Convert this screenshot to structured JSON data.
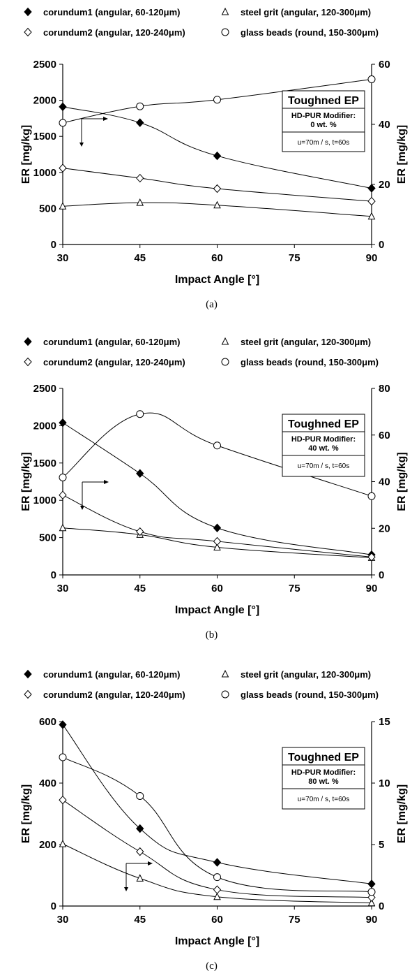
{
  "chart_data": [
    {
      "type": "line",
      "caption": "(a)",
      "xlabel": "Impact Angle [°]",
      "ylabel": "ER [mg/kg]",
      "y2label": "ER [mg/kg]",
      "x_ticks": [
        30,
        45,
        60,
        75,
        90
      ],
      "xlim": [
        30,
        90
      ],
      "ylim": [
        0,
        2500
      ],
      "y_ticks": [
        0,
        500,
        1000,
        1500,
        2000,
        2500
      ],
      "y2lim": [
        0,
        60
      ],
      "y2_ticks": [
        0,
        20,
        40,
        60
      ],
      "legend": [
        {
          "label": "corundum1 (angular, 60-120μm)",
          "marker": "diamond-filled"
        },
        {
          "label": "steel grit (angular, 120-300μm)",
          "marker": "triangle-open"
        },
        {
          "label": "corundum2 (angular, 120-240μm)",
          "marker": "diamond-open"
        },
        {
          "label": "glass beads (round, 150-300μm)",
          "marker": "circle-open"
        }
      ],
      "annotation": {
        "title": "Toughned EP",
        "line1": "HD-PUR Modifier:",
        "line2": "0 wt. %",
        "line3": "u=70m / s, t=60s"
      },
      "series": [
        {
          "name": "corundum1 (angular, 60-120μm)",
          "marker": "diamond-filled",
          "axis": "left",
          "x": [
            30,
            45,
            60,
            90
          ],
          "values": [
            1910,
            1690,
            1230,
            780
          ]
        },
        {
          "name": "steel grit (angular, 120-300μm)",
          "marker": "triangle-open",
          "axis": "left",
          "x": [
            30,
            45,
            60,
            90
          ],
          "values": [
            530,
            580,
            545,
            390
          ]
        },
        {
          "name": "corundum2 (angular, 120-240μm)",
          "marker": "diamond-open",
          "axis": "left",
          "x": [
            30,
            45,
            60,
            90
          ],
          "values": [
            1060,
            920,
            775,
            600
          ]
        },
        {
          "name": "glass beads (round, 150-300μm)",
          "marker": "circle-open",
          "axis": "right",
          "x": [
            30,
            45,
            60,
            90
          ],
          "values": [
            40.5,
            46,
            48.2,
            55
          ]
        }
      ]
    },
    {
      "type": "line",
      "caption": "(b)",
      "xlabel": "Impact Angle [°]",
      "ylabel": "ER [mg/kg]",
      "y2label": "ER [mg/kg]",
      "x_ticks": [
        30,
        45,
        60,
        75,
        90
      ],
      "xlim": [
        30,
        90
      ],
      "ylim": [
        0,
        2500
      ],
      "y_ticks": [
        0,
        500,
        1000,
        1500,
        2000,
        2500
      ],
      "y2lim": [
        0,
        80
      ],
      "y2_ticks": [
        0,
        20,
        40,
        60,
        80
      ],
      "legend": [
        {
          "label": "corundum1 (angular, 60-120μm)",
          "marker": "diamond-filled"
        },
        {
          "label": "steel grit (angular, 120-300μm)",
          "marker": "triangle-open"
        },
        {
          "label": "corundum2 (angular, 120-240μm)",
          "marker": "diamond-open"
        },
        {
          "label": "glass beads (round, 150-300μm)",
          "marker": "circle-open"
        }
      ],
      "annotation": {
        "title": "Toughned EP",
        "line1": "HD-PUR Modifier:",
        "line2": "40 wt. %",
        "line3": "u=70m / s, t=60s"
      },
      "series": [
        {
          "name": "corundum1 (angular, 60-120μm)",
          "marker": "diamond-filled",
          "axis": "left",
          "x": [
            30,
            45,
            60,
            90
          ],
          "values": [
            2040,
            1360,
            630,
            270
          ]
        },
        {
          "name": "steel grit (angular, 120-300μm)",
          "marker": "triangle-open",
          "axis": "left",
          "x": [
            30,
            45,
            60,
            90
          ],
          "values": [
            630,
            540,
            370,
            230
          ]
        },
        {
          "name": "corundum2 (angular, 120-240μm)",
          "marker": "diamond-open",
          "axis": "left",
          "x": [
            30,
            45,
            60,
            90
          ],
          "values": [
            1070,
            580,
            450,
            240
          ]
        },
        {
          "name": "glass beads (round, 150-300μm)",
          "marker": "circle-open",
          "axis": "right",
          "x": [
            30,
            45,
            60,
            90
          ],
          "values": [
            41.8,
            69,
            55.5,
            33.8
          ]
        }
      ]
    },
    {
      "type": "line",
      "caption": "(c)",
      "xlabel": "Impact Angle [°]",
      "ylabel": "ER [mg/kg]",
      "y2label": "ER [mg/kg]",
      "x_ticks": [
        30,
        45,
        60,
        75,
        90
      ],
      "xlim": [
        30,
        90
      ],
      "ylim": [
        0,
        600
      ],
      "y_ticks": [
        0,
        200,
        400,
        600
      ],
      "y2lim": [
        0,
        15
      ],
      "y2_ticks": [
        0,
        5,
        10,
        15
      ],
      "legend": [
        {
          "label": "corundum1 (angular, 60-120μm)",
          "marker": "diamond-filled"
        },
        {
          "label": "steel grit (angular, 120-300μm)",
          "marker": "triangle-open"
        },
        {
          "label": "corundum2 (angular, 120-240μm)",
          "marker": "diamond-open"
        },
        {
          "label": "glass beads (round, 150-300μm)",
          "marker": "circle-open"
        }
      ],
      "annotation": {
        "title": "Toughned EP",
        "line1": "HD-PUR Modifier:",
        "line2": "80 wt. %",
        "line3": "u=70m / s, t=60s"
      },
      "series": [
        {
          "name": "corundum1 (angular, 60-120μm)",
          "marker": "diamond-filled",
          "axis": "left",
          "x": [
            30,
            45,
            60,
            90
          ],
          "values": [
            590,
            252,
            142,
            72
          ]
        },
        {
          "name": "steel grit (angular, 120-300μm)",
          "marker": "triangle-open",
          "axis": "left",
          "x": [
            30,
            45,
            60,
            90
          ],
          "values": [
            202,
            90,
            30,
            10
          ]
        },
        {
          "name": "corundum2 (angular, 120-240μm)",
          "marker": "diamond-open",
          "axis": "left",
          "x": [
            30,
            45,
            60,
            90
          ],
          "values": [
            345,
            177,
            53,
            28
          ]
        },
        {
          "name": "glass beads (round, 150-300μm)",
          "marker": "circle-open",
          "axis": "right",
          "x": [
            30,
            45,
            60,
            90
          ],
          "values": [
            12.1,
            8.95,
            2.35,
            1.15
          ]
        }
      ]
    }
  ]
}
